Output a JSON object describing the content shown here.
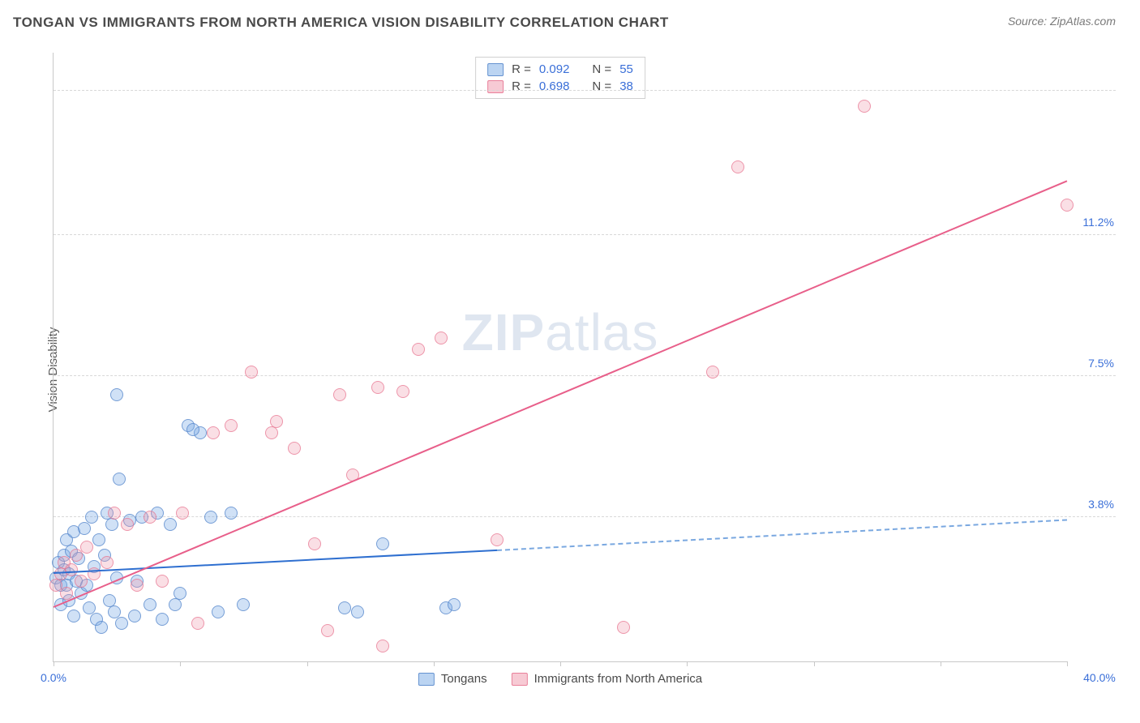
{
  "header": {
    "title": "TONGAN VS IMMIGRANTS FROM NORTH AMERICA VISION DISABILITY CORRELATION CHART",
    "source": "Source: ZipAtlas.com"
  },
  "chart": {
    "type": "scatter",
    "y_axis_label": "Vision Disability",
    "watermark_a": "ZIP",
    "watermark_b": "atlas",
    "background_color": "#ffffff",
    "grid_color": "#d8d8d8",
    "axis_color": "#c8c8c8",
    "label_color": "#3a6fd8",
    "xlim": [
      0,
      40
    ],
    "ylim": [
      0,
      16
    ],
    "x_ticks": [
      0,
      5,
      10,
      15,
      20,
      25,
      30,
      35,
      40
    ],
    "x_tick_labels": {
      "0": "0.0%",
      "40": "40.0%"
    },
    "y_gridlines": [
      3.8,
      7.5,
      11.2,
      15.0
    ],
    "y_tick_labels": {
      "3.8": "3.8%",
      "7.5": "7.5%",
      "11.2": "11.2%",
      "15.0": "15.0%"
    },
    "series": [
      {
        "id": "tongans",
        "label": "Tongans",
        "color_fill": "rgba(120,170,230,0.35)",
        "color_stroke": "rgba(80,130,200,0.7)",
        "marker_size": 16,
        "R": "0.092",
        "N": "55",
        "trend": {
          "x1": 0,
          "y1": 2.3,
          "x2": 17.5,
          "y2": 2.9,
          "extend_x2": 40,
          "extend_y2": 3.7,
          "color": "#2e6fd0",
          "width": 2
        },
        "points": [
          [
            0.1,
            2.2
          ],
          [
            0.2,
            2.6
          ],
          [
            0.3,
            1.5
          ],
          [
            0.3,
            2.0
          ],
          [
            0.4,
            2.4
          ],
          [
            0.4,
            2.8
          ],
          [
            0.5,
            2.0
          ],
          [
            0.5,
            3.2
          ],
          [
            0.6,
            1.6
          ],
          [
            0.6,
            2.3
          ],
          [
            0.7,
            2.9
          ],
          [
            0.8,
            3.4
          ],
          [
            0.8,
            1.2
          ],
          [
            0.9,
            2.1
          ],
          [
            1.0,
            2.7
          ],
          [
            1.1,
            1.8
          ],
          [
            1.2,
            3.5
          ],
          [
            1.3,
            2.0
          ],
          [
            1.4,
            1.4
          ],
          [
            1.5,
            3.8
          ],
          [
            1.6,
            2.5
          ],
          [
            1.7,
            1.1
          ],
          [
            1.8,
            3.2
          ],
          [
            1.9,
            0.9
          ],
          [
            2.0,
            2.8
          ],
          [
            2.1,
            3.9
          ],
          [
            2.2,
            1.6
          ],
          [
            2.3,
            3.6
          ],
          [
            2.4,
            1.3
          ],
          [
            2.5,
            2.2
          ],
          [
            2.6,
            4.8
          ],
          [
            2.7,
            1.0
          ],
          [
            3.0,
            3.7
          ],
          [
            3.2,
            1.2
          ],
          [
            3.5,
            3.8
          ],
          [
            3.8,
            1.5
          ],
          [
            4.1,
            3.9
          ],
          [
            4.3,
            1.1
          ],
          [
            4.6,
            3.6
          ],
          [
            5.0,
            1.8
          ],
          [
            5.3,
            6.2
          ],
          [
            5.8,
            6.0
          ],
          [
            6.2,
            3.8
          ],
          [
            6.5,
            1.3
          ],
          [
            7.0,
            3.9
          ],
          [
            7.5,
            1.5
          ],
          [
            2.5,
            7.0
          ],
          [
            11.5,
            1.4
          ],
          [
            12.0,
            1.3
          ],
          [
            13.0,
            3.1
          ],
          [
            15.5,
            1.4
          ],
          [
            15.8,
            1.5
          ],
          [
            5.5,
            6.1
          ],
          [
            4.8,
            1.5
          ],
          [
            3.3,
            2.1
          ]
        ]
      },
      {
        "id": "immigrants",
        "label": "Immigrants from North America",
        "color_fill": "rgba(240,150,170,0.3)",
        "color_stroke": "rgba(230,110,140,0.65)",
        "marker_size": 16,
        "R": "0.698",
        "N": "38",
        "trend": {
          "x1": 0,
          "y1": 1.4,
          "x2": 40,
          "y2": 12.6,
          "color": "#e85f8a",
          "width": 2
        },
        "points": [
          [
            0.1,
            2.0
          ],
          [
            0.3,
            2.3
          ],
          [
            0.4,
            2.6
          ],
          [
            0.5,
            1.8
          ],
          [
            0.7,
            2.4
          ],
          [
            0.9,
            2.8
          ],
          [
            1.1,
            2.1
          ],
          [
            1.3,
            3.0
          ],
          [
            1.6,
            2.3
          ],
          [
            2.1,
            2.6
          ],
          [
            2.4,
            3.9
          ],
          [
            2.9,
            3.6
          ],
          [
            3.3,
            2.0
          ],
          [
            3.8,
            3.8
          ],
          [
            4.3,
            2.1
          ],
          [
            5.1,
            3.9
          ],
          [
            5.7,
            1.0
          ],
          [
            6.3,
            6.0
          ],
          [
            7.0,
            6.2
          ],
          [
            7.8,
            7.6
          ],
          [
            8.6,
            6.0
          ],
          [
            8.8,
            6.3
          ],
          [
            9.5,
            5.6
          ],
          [
            10.3,
            3.1
          ],
          [
            10.8,
            0.8
          ],
          [
            11.3,
            7.0
          ],
          [
            11.8,
            4.9
          ],
          [
            12.8,
            7.2
          ],
          [
            13.0,
            0.4
          ],
          [
            13.8,
            7.1
          ],
          [
            14.4,
            8.2
          ],
          [
            15.3,
            8.5
          ],
          [
            17.5,
            3.2
          ],
          [
            22.5,
            0.9
          ],
          [
            26.0,
            7.6
          ],
          [
            27.0,
            13.0
          ],
          [
            32.0,
            14.6
          ],
          [
            40.0,
            12.0
          ]
        ]
      }
    ],
    "stats_legend": {
      "rows": [
        {
          "swatch": "blue",
          "r_label": "R =",
          "r_val": "0.092",
          "n_label": "N =",
          "n_val": "55"
        },
        {
          "swatch": "pink",
          "r_label": "R =",
          "r_val": "0.698",
          "n_label": "N =",
          "n_val": "38"
        }
      ]
    }
  }
}
